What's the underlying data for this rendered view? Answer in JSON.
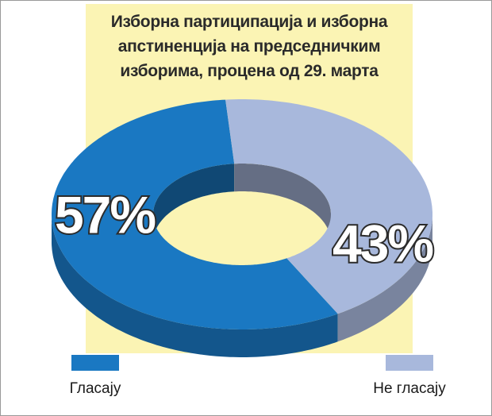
{
  "chart_data": {
    "type": "donut",
    "title": "Изборна партиципација и изборна апстиненција на председничким изборима, процена од 29. марта",
    "categories": [
      "Гласају",
      "Не гласају"
    ],
    "values": [
      57,
      43
    ],
    "value_labels": [
      "57%",
      "43%"
    ],
    "colors": [
      "#1a78c2",
      "#a8b8dc"
    ]
  }
}
